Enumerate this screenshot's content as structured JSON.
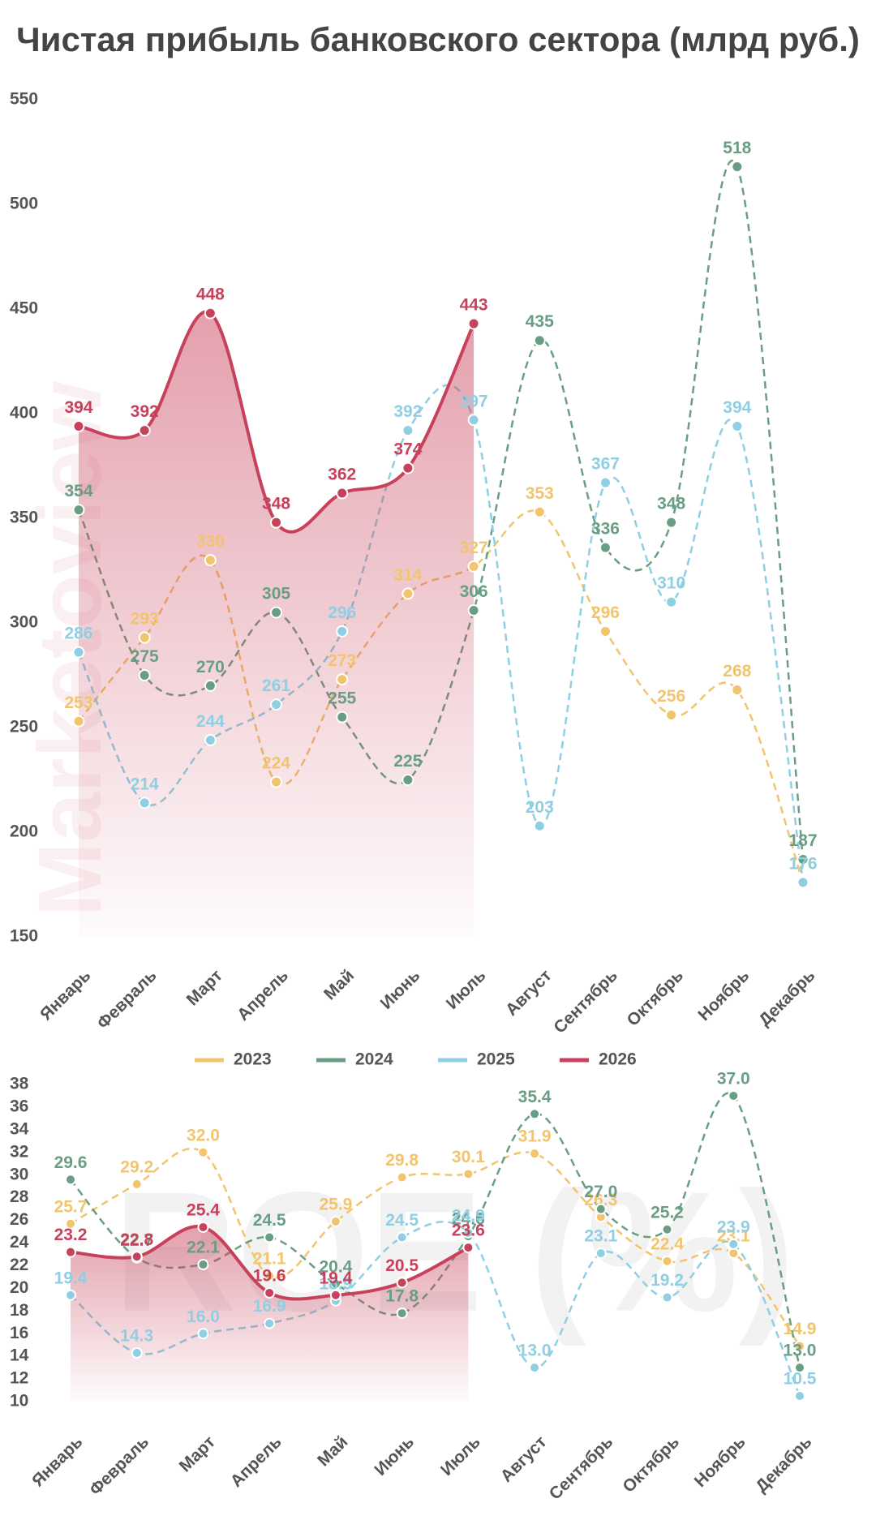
{
  "chart_data": [
    {
      "type": "line",
      "title": "Чистая прибыль банковского сектора (млрд руб.)",
      "watermark": "Marketoview",
      "categories": [
        "Январь",
        "Февраль",
        "Март",
        "Апрель",
        "Май",
        "Июнь",
        "Июль",
        "Август",
        "Сентябрь",
        "Октябрь",
        "Ноябрь",
        "Декабрь"
      ],
      "ylim": [
        150,
        550
      ],
      "yticks": [
        150,
        200,
        250,
        300,
        350,
        400,
        450,
        500,
        550
      ],
      "grid": false,
      "series": [
        {
          "name": "2023",
          "color": "#f2c46d",
          "values": [
            253,
            293,
            330,
            224,
            273,
            314,
            327,
            353,
            296,
            256,
            268,
            176
          ]
        },
        {
          "name": "2024",
          "color": "#6a9e84",
          "values": [
            354,
            275,
            270,
            305,
            255,
            225,
            306,
            435,
            336,
            348,
            518,
            187
          ]
        },
        {
          "name": "2025",
          "color": "#8ecfe3",
          "values": [
            286,
            214,
            244,
            261,
            296,
            392,
            397,
            203,
            367,
            310,
            394,
            176
          ]
        },
        {
          "name": "2026",
          "color": "#c8415a",
          "values": [
            394,
            392,
            448,
            348,
            362,
            374,
            443,
            null,
            null,
            null,
            null,
            null
          ]
        }
      ]
    },
    {
      "type": "line",
      "annotation": "ROE (%)",
      "categories": [
        "Январь",
        "Февраль",
        "Март",
        "Апрель",
        "Май",
        "Июнь",
        "Июль",
        "Август",
        "Сентябрь",
        "Октябрь",
        "Ноябрь",
        "Декабрь"
      ],
      "ylim": [
        10,
        38
      ],
      "yticks": [
        10,
        12,
        14,
        16,
        18,
        20,
        22,
        24,
        26,
        28,
        30,
        32,
        34,
        36,
        38
      ],
      "grid": false,
      "series": [
        {
          "name": "2023",
          "color": "#f2c46d",
          "values": [
            25.7,
            29.2,
            32.0,
            21.1,
            25.9,
            29.8,
            30.1,
            31.9,
            26.3,
            22.4,
            23.1,
            14.9
          ],
          "value_labels": [
            "25.7",
            "29.2",
            "32.0",
            "21.1",
            "25.9",
            "29.8",
            "30.1",
            "31.9",
            "26.3",
            "22.4",
            "23.1",
            "14.9"
          ]
        },
        {
          "name": "2024",
          "color": "#6a9e84",
          "values": [
            29.6,
            22.7,
            22.1,
            24.5,
            20.4,
            17.8,
            24.6,
            35.4,
            27.0,
            25.2,
            37.0,
            13.0
          ],
          "value_labels": [
            "29.6",
            "22.7",
            "22.1",
            "24.5",
            "20.4",
            "17.8",
            "24.6",
            "35.4",
            "27.0",
            "25.2",
            "37.0",
            "13.0"
          ]
        },
        {
          "name": "2025",
          "color": "#8ecfe3",
          "values": [
            19.4,
            14.3,
            16.0,
            16.9,
            18.9,
            24.5,
            24.9,
            13.0,
            23.1,
            19.2,
            23.9,
            10.5
          ],
          "value_labels": [
            "19.4",
            "14.3",
            "16.0",
            "16.9",
            "18.9",
            "24.5",
            "24.9",
            "13.0",
            "23.1",
            "19.2",
            "23.9",
            "10.5"
          ]
        },
        {
          "name": "2026",
          "color": "#c8415a",
          "values": [
            23.2,
            22.8,
            25.4,
            19.6,
            19.4,
            20.5,
            23.6,
            null,
            null,
            null,
            null,
            null
          ],
          "value_labels": [
            "23.2",
            "22.8",
            "25.4",
            "19.6",
            "19.4",
            "20.5",
            "23.6",
            null,
            null,
            null,
            null,
            null
          ]
        }
      ]
    }
  ]
}
